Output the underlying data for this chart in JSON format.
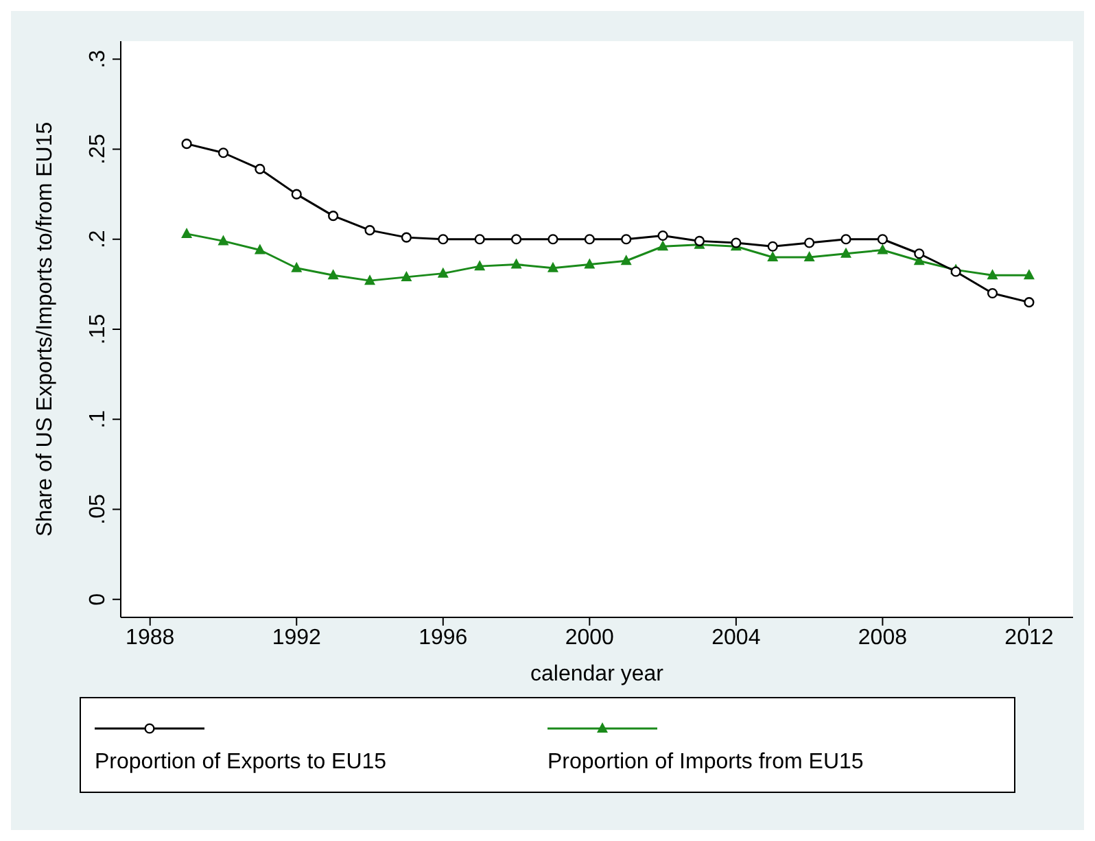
{
  "chart_data": {
    "type": "line",
    "xlabel": "calendar year",
    "ylabel": "Share of US Exports/Imports to/from EU15",
    "x": [
      1989,
      1990,
      1991,
      1992,
      1993,
      1994,
      1995,
      1996,
      1997,
      1998,
      1999,
      2000,
      2001,
      2002,
      2003,
      2004,
      2005,
      2006,
      2007,
      2008,
      2009,
      2010,
      2011,
      2012
    ],
    "series": [
      {
        "name": "Proportion of Exports to EU15",
        "color": "#000000",
        "marker": "circle",
        "values": [
          0.253,
          0.248,
          0.239,
          0.225,
          0.213,
          0.205,
          0.201,
          0.2,
          0.2,
          0.2,
          0.2,
          0.2,
          0.2,
          0.202,
          0.199,
          0.198,
          0.196,
          0.198,
          0.2,
          0.2,
          0.192,
          0.182,
          0.17,
          0.165
        ]
      },
      {
        "name": "Proportion of Imports from EU15",
        "color": "#1a8a1a",
        "marker": "triangle",
        "values": [
          0.203,
          0.199,
          0.194,
          0.184,
          0.18,
          0.177,
          0.179,
          0.181,
          0.185,
          0.186,
          0.184,
          0.186,
          0.188,
          0.196,
          0.197,
          0.196,
          0.19,
          0.19,
          0.192,
          0.194,
          0.188,
          0.183,
          0.18,
          0.18
        ]
      }
    ],
    "xlim": [
      1987.2,
      2013.2
    ],
    "xticks": [
      1988,
      1992,
      1996,
      2000,
      2004,
      2008,
      2012
    ],
    "ylim": [
      -0.01,
      0.31
    ],
    "yticks": [
      {
        "value": 0,
        "label": "0"
      },
      {
        "value": 0.05,
        "label": ".05"
      },
      {
        "value": 0.1,
        "label": ".1"
      },
      {
        "value": 0.15,
        "label": ".15"
      },
      {
        "value": 0.2,
        "label": ".2"
      },
      {
        "value": 0.25,
        "label": ".25"
      },
      {
        "value": 0.3,
        "label": ".3"
      }
    ],
    "legend": "bottom",
    "grid": false
  }
}
